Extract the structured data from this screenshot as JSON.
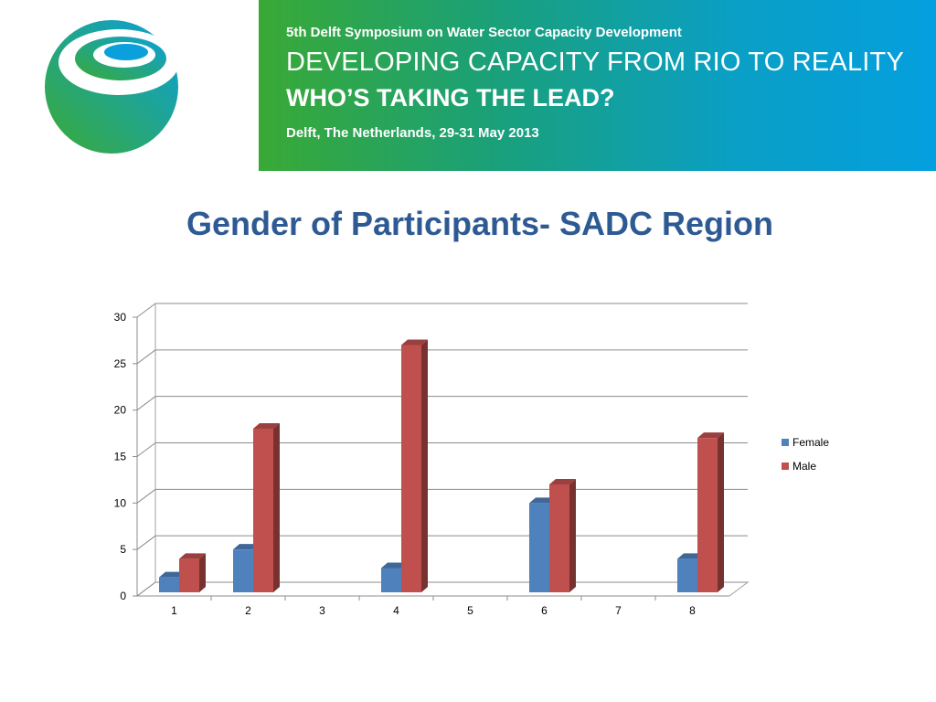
{
  "banner": {
    "subtitle": "5th Delft Symposium on Water Sector Capacity Development",
    "headline1": "DEVELOPING CAPACITY FROM RIO TO REALITY",
    "headline2": "WHO’S TAKING THE LEAD?",
    "location_date": "Delft, The Netherlands, 29-31 May 2013"
  },
  "slide_title": "Gender of Participants- SADC Region",
  "colors": {
    "female": "#4f81bd",
    "male": "#c0504d",
    "title": "#2e5a93"
  },
  "chart_data": {
    "type": "bar",
    "categories": [
      "1",
      "2",
      "3",
      "4",
      "5",
      "6",
      "7",
      "8"
    ],
    "series": [
      {
        "name": "Female",
        "values": [
          2,
          5,
          0,
          3,
          0,
          10,
          0,
          4
        ]
      },
      {
        "name": "Male",
        "values": [
          4,
          18,
          0,
          27,
          0,
          12,
          0,
          17
        ]
      }
    ],
    "ylim": [
      0,
      30
    ],
    "yticks": [
      0,
      5,
      10,
      15,
      20,
      25,
      30
    ],
    "grid": true,
    "legend": "right",
    "style": "3d-clustered-column"
  }
}
